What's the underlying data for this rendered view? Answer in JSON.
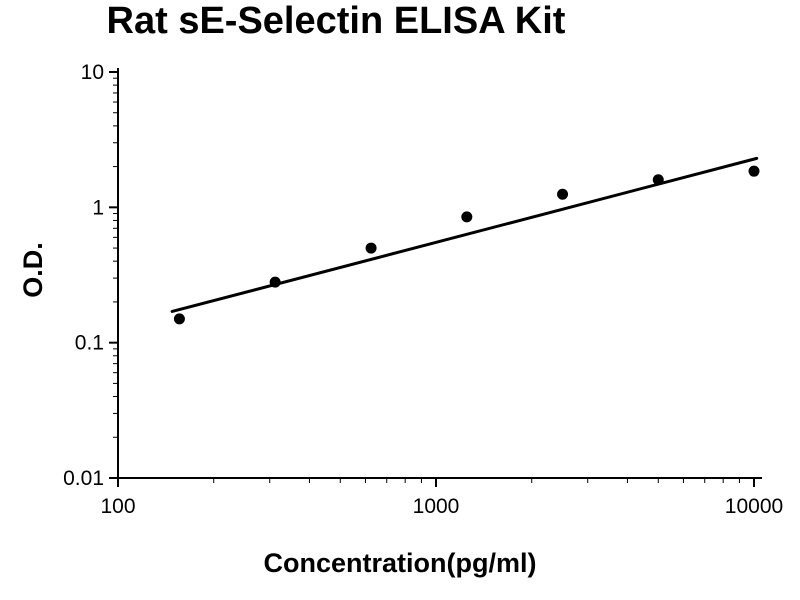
{
  "page": {
    "background_color": "#ffffff"
  },
  "chart_data": {
    "type": "scatter",
    "title": "Rat sE-Selectin ELISA Kit",
    "xlabel": "Concentration(pg/ml)",
    "ylabel": "O.D.",
    "x_scale": "log",
    "y_scale": "log",
    "xlim": [
      100,
      10000
    ],
    "ylim": [
      0.01,
      10
    ],
    "x_ticks": [
      100,
      1000,
      10000
    ],
    "x_tick_labels": [
      "100",
      "1000",
      "10000"
    ],
    "y_ticks": [
      10,
      1,
      0.1,
      0.01
    ],
    "y_tick_labels": [
      "10",
      "1",
      "0.1",
      "0.01"
    ],
    "grid": false,
    "legend": false,
    "series": [
      {
        "name": "standard-curve-points",
        "type": "scatter",
        "marker": "circle",
        "color": "#000000",
        "x": [
          156,
          312,
          625,
          1250,
          2500,
          5000,
          10000
        ],
        "y": [
          0.15,
          0.28,
          0.5,
          0.85,
          1.25,
          1.6,
          1.85
        ]
      },
      {
        "name": "trend-line",
        "type": "line",
        "color": "#000000",
        "x": [
          148,
          10200
        ],
        "y": [
          0.17,
          2.3
        ]
      }
    ],
    "colors": {
      "axis": "#000000",
      "marker": "#000000",
      "line": "#000000",
      "background": "#ffffff"
    }
  }
}
